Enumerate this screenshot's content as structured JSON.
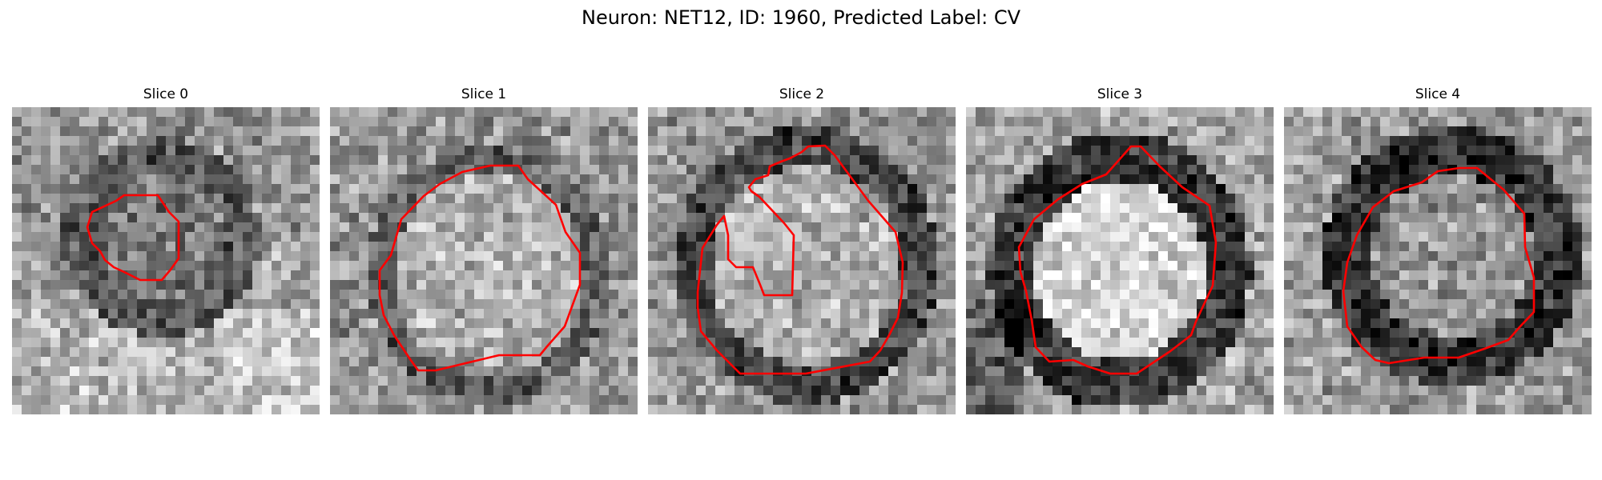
{
  "figure": {
    "title": "Neuron: NET12, ID: 1960, Predicted Label: CV"
  },
  "panels": [
    {
      "title": "Slice 0"
    },
    {
      "title": "Slice 1"
    },
    {
      "title": "Slice 2"
    },
    {
      "title": "Slice 3"
    },
    {
      "title": "Slice 4"
    }
  ],
  "colors": {
    "contour": "#ff0000",
    "background": "#ffffff"
  },
  "image": {
    "type": "grayscale-electron-micrograph-grid",
    "grid_cells": 32
  }
}
